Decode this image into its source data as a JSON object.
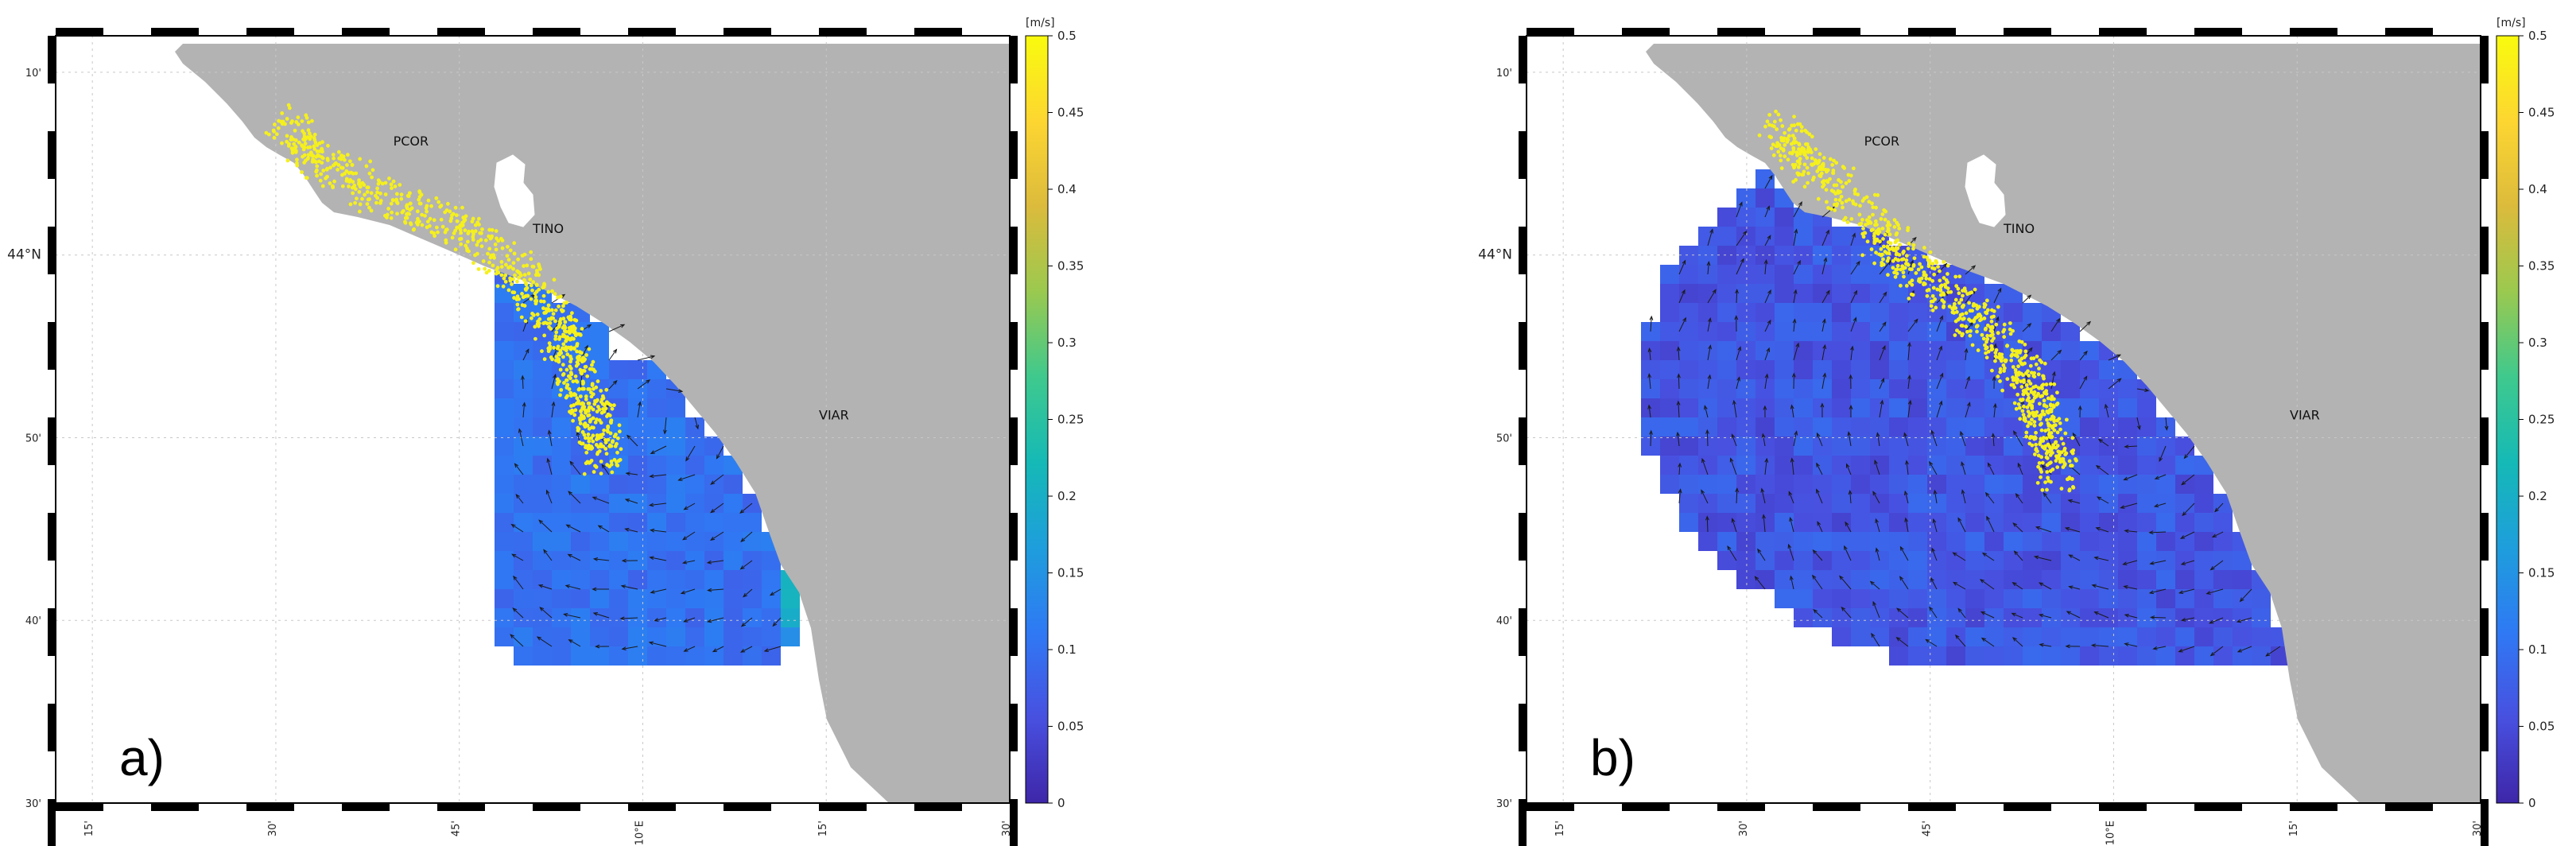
{
  "colors": {
    "land": "#b3b3b3",
    "sea": "#ffffff",
    "particles": "#f5f01e",
    "arrows": "#1a1a1a",
    "grid": "#c8c8c8",
    "colormap": [
      "#3e26a8",
      "#4850e0",
      "#2f79f4",
      "#1e9edc",
      "#15b9b6",
      "#3fc98d",
      "#9bc94f",
      "#dcbb3c",
      "#fdd631",
      "#f9fb0e"
    ]
  },
  "colorbar": {
    "unit": "[m/s]",
    "ticks": [
      "0",
      "0.05",
      "0.1",
      "0.15",
      "0.2",
      "0.25",
      "0.3",
      "0.35",
      "0.4",
      "0.45",
      "0.5"
    ],
    "range": [
      0,
      0.5
    ]
  },
  "axes": {
    "lat_labels": [
      {
        "text": "10'",
        "lat": 44.1667
      },
      {
        "text": "44°N",
        "lat": 44.0
      },
      {
        "text": "50'",
        "lat": 43.8333
      },
      {
        "text": "40'",
        "lat": 43.6667
      },
      {
        "text": "30'",
        "lat": 43.5
      }
    ],
    "lon_labels": [
      {
        "text": "15'",
        "lon": 9.25
      },
      {
        "text": "30'",
        "lon": 9.5
      },
      {
        "text": "45'",
        "lon": 9.75
      },
      {
        "text": "10°E",
        "lon": 10.0
      },
      {
        "text": "15'",
        "lon": 10.25
      },
      {
        "text": "30'",
        "lon": 10.5
      }
    ],
    "lon_range": [
      9.2,
      10.5
    ],
    "lat_range": [
      43.5,
      44.2
    ]
  },
  "stations": [
    {
      "name": "PCOR",
      "lon": 9.66,
      "lat": 44.1
    },
    {
      "name": "TINO",
      "lon": 9.85,
      "lat": 44.02
    },
    {
      "name": "VIAR",
      "lon": 10.24,
      "lat": 43.85
    }
  ],
  "panels": [
    {
      "label": "a)",
      "coverage": "limited",
      "particle_mode": "coastal"
    },
    {
      "label": "b)",
      "coverage": "extended",
      "particle_mode": "offshore"
    }
  ]
}
